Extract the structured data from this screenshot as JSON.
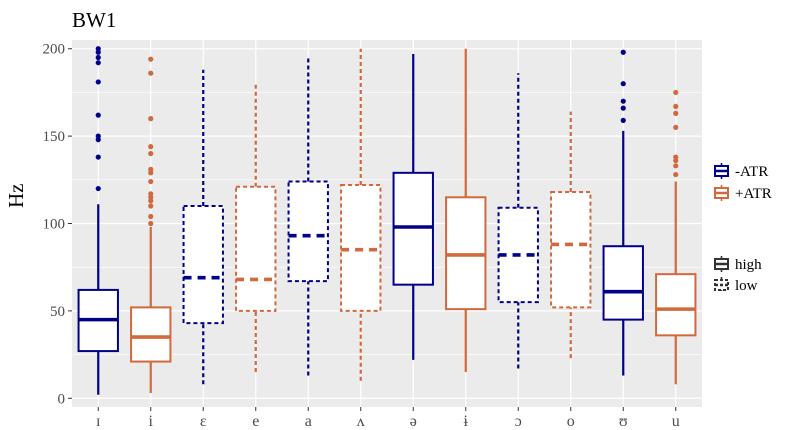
{
  "chart_data": {
    "type": "boxplot",
    "title": "BW1",
    "xlabel": "",
    "ylabel": "Hz",
    "ylim": [
      -5,
      205
    ],
    "yticks": [
      0,
      50,
      100,
      150,
      200
    ],
    "categories": [
      "ɪ",
      "i",
      "ɛ",
      "e",
      "a",
      "ʌ",
      "ə",
      "ɨ",
      "ɔ",
      "o",
      "ʊ",
      "u"
    ],
    "legend": {
      "position": "right",
      "color_entries": [
        {
          "label": "-ATR",
          "color": "#00008B"
        },
        {
          "label": "+ATR",
          "color": "#D2693C"
        }
      ],
      "linetype_entries": [
        {
          "label": "high",
          "linetype": "solid"
        },
        {
          "label": "low",
          "linetype": "dashed"
        }
      ]
    },
    "boxes": [
      {
        "category": "ɪ",
        "atr": "-ATR",
        "height": "high",
        "min": 2,
        "q1": 27,
        "median": 45,
        "q3": 62,
        "max": 111,
        "outliers": [
          120,
          138,
          148,
          150,
          162,
          181,
          192,
          195,
          198,
          200
        ]
      },
      {
        "category": "i",
        "atr": "+ATR",
        "height": "high",
        "min": 3,
        "q1": 21,
        "median": 35,
        "q3": 52,
        "max": 98,
        "outliers": [
          100,
          104,
          110,
          113,
          115,
          117,
          124,
          129,
          131,
          140,
          144,
          160,
          186,
          194
        ]
      },
      {
        "category": "ɛ",
        "atr": "-ATR",
        "height": "low",
        "min": 8,
        "q1": 43,
        "median": 69,
        "q3": 110,
        "max": 188,
        "outliers": []
      },
      {
        "category": "e",
        "atr": "+ATR",
        "height": "low",
        "min": 15,
        "q1": 50,
        "median": 68,
        "q3": 121,
        "max": 180,
        "outliers": []
      },
      {
        "category": "a",
        "atr": "-ATR",
        "height": "low",
        "min": 13,
        "q1": 67,
        "median": 93,
        "q3": 124,
        "max": 196,
        "outliers": []
      },
      {
        "category": "ʌ",
        "atr": "+ATR",
        "height": "low",
        "min": 10,
        "q1": 50,
        "median": 85,
        "q3": 122,
        "max": 200,
        "outliers": []
      },
      {
        "category": "ə",
        "atr": "-ATR",
        "height": "high",
        "min": 22,
        "q1": 65,
        "median": 98,
        "q3": 129,
        "max": 197,
        "outliers": []
      },
      {
        "category": "ɨ",
        "atr": "+ATR",
        "height": "high",
        "min": 15,
        "q1": 51,
        "median": 82,
        "q3": 115,
        "max": 200,
        "outliers": []
      },
      {
        "category": "ɔ",
        "atr": "-ATR",
        "height": "low",
        "min": 17,
        "q1": 55,
        "median": 82,
        "q3": 109,
        "max": 186,
        "outliers": []
      },
      {
        "category": "o",
        "atr": "+ATR",
        "height": "low",
        "min": 23,
        "q1": 52,
        "median": 88,
        "q3": 118,
        "max": 164,
        "outliers": []
      },
      {
        "category": "ʊ",
        "atr": "-ATR",
        "height": "high",
        "min": 13,
        "q1": 45,
        "median": 61,
        "q3": 87,
        "max": 153,
        "outliers": [
          159,
          166,
          170,
          180,
          198
        ]
      },
      {
        "category": "u",
        "atr": "+ATR",
        "height": "high",
        "min": 8,
        "q1": 36,
        "median": 51,
        "q3": 71,
        "max": 124,
        "outliers": [
          128,
          133,
          136,
          138,
          155,
          163,
          167,
          175
        ]
      }
    ]
  }
}
